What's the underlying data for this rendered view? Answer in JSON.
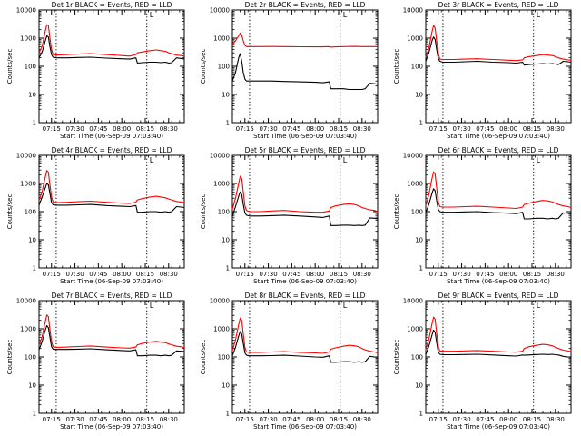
{
  "chart_data": {
    "type": "line",
    "y_scale": "log",
    "ylim": [
      1,
      10000
    ],
    "y_ticks": [
      "1",
      "10",
      "100",
      "1000",
      "10000"
    ],
    "ylabel": "Counts/sec",
    "xlim": [
      "07:07",
      "08:40"
    ],
    "x_ticks": [
      "07:15",
      "07:30",
      "07:45",
      "08:00",
      "08:15",
      "08:30"
    ],
    "xlabel": "Start Time (06-Sep-09 07:03:40)",
    "vlines": [
      "07:18",
      "08:16"
    ],
    "corner_marker": "L",
    "series_colors": {
      "events": "#000000",
      "lld": "#ff0000"
    },
    "panels": [
      {
        "title": "Det 1r BLACK = Events, RED = LLD",
        "x": [
          "07:07",
          "07:09",
          "07:11",
          "07:12",
          "07:13",
          "07:14",
          "07:15",
          "07:16",
          "07:18",
          "07:25",
          "07:32",
          "07:40",
          "07:50",
          "08:00",
          "08:05",
          "08:09",
          "08:10",
          "08:13",
          "08:18",
          "08:22",
          "08:25",
          "08:28",
          "08:30",
          "08:32",
          "08:35",
          "08:38",
          "08:40"
        ],
        "series": [
          {
            "values": [
              200,
              320,
              800,
              1200,
              1100,
              500,
              260,
              210,
              200,
              200,
              205,
              210,
              195,
              185,
              180,
              200,
              130,
              135,
              140,
              140,
              135,
              140,
              130,
              135,
              200,
              190,
              180
            ]
          },
          {
            "values": [
              300,
              500,
              1800,
              3000,
              2800,
              1000,
              400,
              260,
              250,
              260,
              270,
              280,
              260,
              240,
              230,
              260,
              300,
              320,
              360,
              380,
              360,
              340,
              300,
              280,
              250,
              240,
              230
            ]
          }
        ]
      },
      {
        "title": "Det 2r BLACK = Events, RED = LLD",
        "x": [
          "07:07",
          "07:09",
          "07:11",
          "07:12",
          "07:13",
          "07:14",
          "07:15",
          "07:16",
          "07:18",
          "07:25",
          "07:32",
          "07:40",
          "07:50",
          "08:00",
          "08:05",
          "08:09",
          "08:10",
          "08:13",
          "08:18",
          "08:22",
          "08:25",
          "08:28",
          "08:30",
          "08:32",
          "08:35",
          "08:38",
          "08:40"
        ],
        "series": [
          {
            "values": [
              30,
              60,
              200,
              280,
              150,
              60,
              35,
              30,
              30,
              30,
              30,
              29,
              28,
              27,
              26,
              28,
              16,
              16,
              16,
              15,
              15,
              15,
              15,
              16,
              25,
              24,
              23
            ]
          },
          {
            "values": [
              600,
              800,
              1200,
              1500,
              1300,
              800,
              550,
              500,
              500,
              500,
              505,
              500,
              495,
              490,
              490,
              500,
              480,
              490,
              500,
              505,
              510,
              505,
              500,
              500,
              500,
              500,
              500
            ]
          }
        ]
      },
      {
        "title": "Det 3r BLACK = Events, RED = LLD",
        "x": [
          "07:07",
          "07:09",
          "07:11",
          "07:12",
          "07:13",
          "07:14",
          "07:15",
          "07:16",
          "07:18",
          "07:25",
          "07:32",
          "07:40",
          "07:50",
          "08:00",
          "08:05",
          "08:09",
          "08:10",
          "08:13",
          "08:18",
          "08:22",
          "08:25",
          "08:28",
          "08:30",
          "08:32",
          "08:35",
          "08:38",
          "08:40"
        ],
        "series": [
          {
            "values": [
              150,
              300,
              800,
              1100,
              900,
              400,
              190,
              150,
              140,
              140,
              145,
              150,
              140,
              135,
              130,
              140,
              110,
              115,
              120,
              125,
              120,
              125,
              120,
              115,
              150,
              145,
              140
            ]
          },
          {
            "values": [
              200,
              450,
              1700,
              2800,
              2300,
              800,
              300,
              180,
              175,
              175,
              180,
              185,
              175,
              165,
              160,
              170,
              200,
              220,
              240,
              260,
              250,
              240,
              220,
              200,
              180,
              170,
              165
            ]
          }
        ]
      },
      {
        "title": "Det 4r BLACK = Events, RED = LLD",
        "x": [
          "07:07",
          "07:09",
          "07:11",
          "07:12",
          "07:13",
          "07:14",
          "07:15",
          "07:16",
          "07:18",
          "07:25",
          "07:32",
          "07:40",
          "07:50",
          "08:00",
          "08:05",
          "08:09",
          "08:10",
          "08:13",
          "08:18",
          "08:22",
          "08:25",
          "08:28",
          "08:30",
          "08:32",
          "08:35",
          "08:38",
          "08:40"
        ],
        "series": [
          {
            "values": [
              170,
              330,
              700,
              1000,
              900,
              450,
              210,
              175,
              170,
              170,
              175,
              180,
              165,
              155,
              150,
              165,
              95,
              95,
              100,
              100,
              95,
              100,
              95,
              100,
              150,
              145,
              140
            ]
          },
          {
            "values": [
              250,
              500,
              1700,
              2900,
              2500,
              900,
              330,
              220,
              210,
              215,
              225,
              235,
              215,
              200,
              195,
              215,
              260,
              290,
              330,
              350,
              330,
              310,
              280,
              260,
              230,
              220,
              210
            ]
          }
        ]
      },
      {
        "title": "Det 5r BLACK = Events, RED = LLD",
        "x": [
          "07:07",
          "07:09",
          "07:11",
          "07:12",
          "07:13",
          "07:14",
          "07:15",
          "07:16",
          "07:18",
          "07:25",
          "07:32",
          "07:40",
          "07:50",
          "08:00",
          "08:05",
          "08:09",
          "08:10",
          "08:13",
          "08:18",
          "08:22",
          "08:25",
          "08:28",
          "08:30",
          "08:32",
          "08:35",
          "08:38",
          "08:40"
        ],
        "series": [
          {
            "values": [
              70,
              150,
              350,
              500,
              400,
              180,
              90,
              75,
              70,
              70,
              72,
              75,
              70,
              65,
              62,
              70,
              32,
              32,
              33,
              33,
              32,
              33,
              32,
              33,
              60,
              58,
              55
            ]
          },
          {
            "values": [
              120,
              300,
              1000,
              1800,
              1500,
              500,
              160,
              110,
              100,
              100,
              105,
              110,
              100,
              95,
              95,
              105,
              140,
              160,
              180,
              190,
              180,
              160,
              140,
              130,
              115,
              110,
              100
            ]
          }
        ]
      },
      {
        "title": "Det 6r BLACK = Events, RED = LLD",
        "x": [
          "07:07",
          "07:09",
          "07:11",
          "07:12",
          "07:13",
          "07:14",
          "07:15",
          "07:16",
          "07:18",
          "07:25",
          "07:32",
          "07:40",
          "07:50",
          "08:00",
          "08:05",
          "08:09",
          "08:10",
          "08:13",
          "08:18",
          "08:22",
          "08:25",
          "08:28",
          "08:30",
          "08:32",
          "08:35",
          "08:38",
          "08:40"
        ],
        "series": [
          {
            "values": [
              90,
              180,
              450,
              650,
              550,
              250,
              120,
              100,
              95,
              95,
              98,
              100,
              92,
              88,
              85,
              95,
              55,
              55,
              58,
              58,
              55,
              58,
              55,
              58,
              90,
              88,
              85
            ]
          },
          {
            "values": [
              160,
              400,
              1500,
              2600,
              2200,
              700,
              220,
              150,
              145,
              145,
              150,
              155,
              145,
              135,
              130,
              145,
              180,
              200,
              230,
              250,
              240,
              220,
              200,
              180,
              160,
              150,
              140
            ]
          }
        ]
      },
      {
        "title": "Det 7r BLACK = Events, RED = LLD",
        "x": [
          "07:07",
          "07:09",
          "07:11",
          "07:12",
          "07:13",
          "07:14",
          "07:15",
          "07:16",
          "07:18",
          "07:25",
          "07:32",
          "07:40",
          "07:50",
          "08:00",
          "08:05",
          "08:09",
          "08:10",
          "08:13",
          "08:18",
          "08:22",
          "08:25",
          "08:28",
          "08:30",
          "08:32",
          "08:35",
          "08:38",
          "08:40"
        ],
        "series": [
          {
            "values": [
              180,
              350,
              900,
              1300,
              1100,
              500,
              230,
              190,
              185,
              185,
              190,
              195,
              180,
              170,
              165,
              180,
              110,
              110,
              115,
              115,
              110,
              115,
              110,
              115,
              165,
              160,
              155
            ]
          },
          {
            "values": [
              260,
              520,
              1800,
              3100,
              2700,
              950,
              350,
              230,
              220,
              225,
              235,
              245,
              225,
              210,
              205,
              225,
              270,
              300,
              340,
              360,
              340,
              320,
              290,
              270,
              240,
              230,
              220
            ]
          }
        ]
      },
      {
        "title": "Det 8r BLACK = Events, RED = LLD",
        "x": [
          "07:07",
          "07:09",
          "07:11",
          "07:12",
          "07:13",
          "07:14",
          "07:15",
          "07:16",
          "07:18",
          "07:25",
          "07:32",
          "07:40",
          "07:50",
          "08:00",
          "08:05",
          "08:09",
          "08:10",
          "08:13",
          "08:18",
          "08:22",
          "08:25",
          "08:28",
          "08:30",
          "08:32",
          "08:35",
          "08:38",
          "08:40"
        ],
        "series": [
          {
            "values": [
              110,
              220,
              550,
              800,
              650,
              300,
              140,
              115,
              110,
              110,
              112,
              115,
              108,
              100,
              98,
              110,
              65,
              65,
              68,
              68,
              65,
              68,
              65,
              68,
              105,
              100,
              98
            ]
          },
          {
            "values": [
              170,
              400,
              1400,
              2400,
              2000,
              650,
              220,
              150,
              145,
              145,
              150,
              155,
              145,
              140,
              135,
              150,
              190,
              210,
              240,
              260,
              250,
              230,
              200,
              180,
              160,
              150,
              140
            ]
          }
        ]
      },
      {
        "title": "Det 9r BLACK = Events, RED = LLD",
        "x": [
          "07:07",
          "07:09",
          "07:11",
          "07:12",
          "07:13",
          "07:14",
          "07:15",
          "07:16",
          "07:18",
          "07:25",
          "07:32",
          "07:40",
          "07:50",
          "08:00",
          "08:05",
          "08:09",
          "08:10",
          "08:13",
          "08:18",
          "08:22",
          "08:25",
          "08:28",
          "08:30",
          "08:32",
          "08:35",
          "08:38",
          "08:40"
        ],
        "series": [
          {
            "values": [
              120,
              240,
              600,
              900,
              750,
              330,
              150,
              125,
              120,
              120,
              122,
              125,
              118,
              110,
              108,
              118,
              115,
              118,
              122,
              125,
              122,
              125,
              120,
              118,
              105,
              100,
              98
            ]
          },
          {
            "values": [
              180,
              420,
              1500,
              2600,
              2200,
              700,
              240,
              165,
              160,
              160,
              165,
              170,
              160,
              150,
              148,
              160,
              200,
              230,
              260,
              280,
              270,
              250,
              220,
              200,
              175,
              165,
              155
            ]
          }
        ]
      }
    ]
  }
}
